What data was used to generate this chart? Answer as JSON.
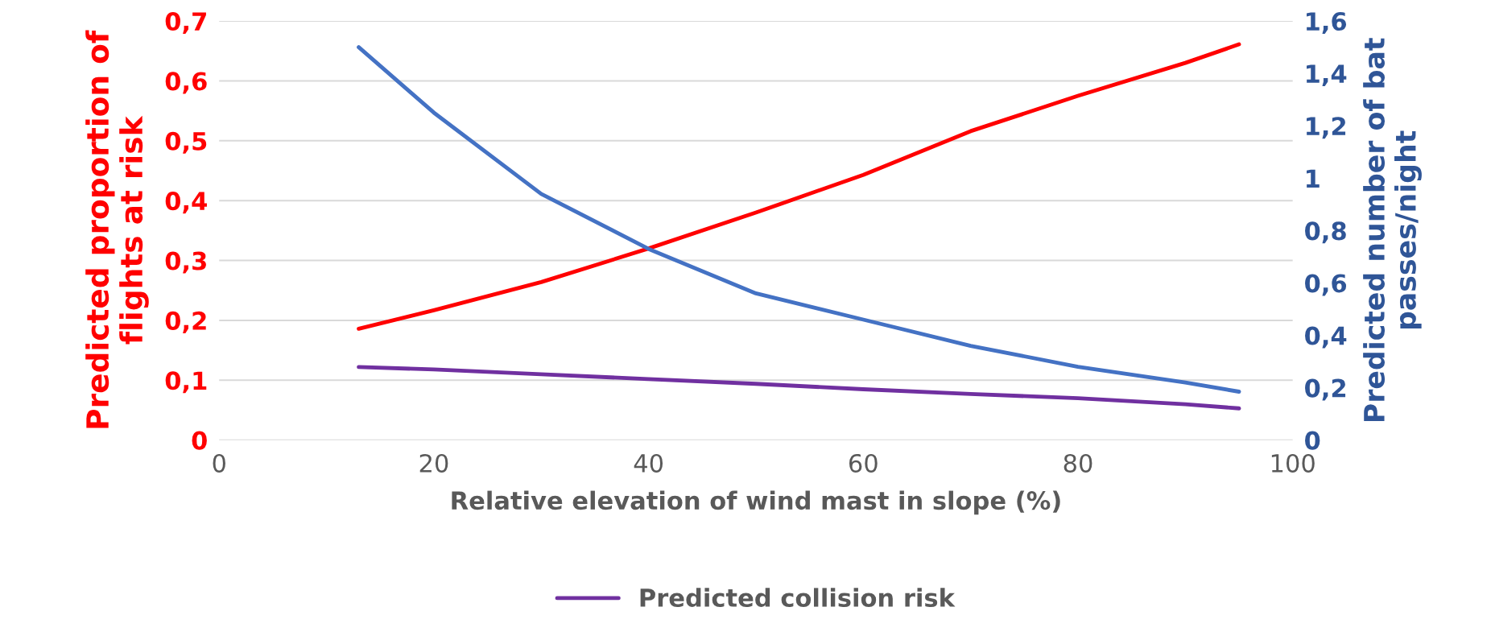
{
  "chart_data": {
    "type": "line",
    "xlabel": "Relative elevation of wind mast in slope (%)",
    "ylabel": "Predicted proportion of flights at risk",
    "y2label": "Predicted number of bat passes/night",
    "x": [
      13,
      20,
      30,
      40,
      50,
      60,
      70,
      80,
      90,
      95
    ],
    "series": [
      {
        "color": "#ff0000",
        "values": [
          0.186,
          0.217,
          0.264,
          0.32,
          0.38,
          0.443,
          0.516,
          0.575,
          0.63,
          0.661
        ]
      },
      {
        "color": "#4472c4",
        "axis": "y2",
        "values": [
          1.5,
          1.25,
          0.94,
          0.73,
          0.56,
          0.46,
          0.36,
          0.28,
          0.22,
          0.185
        ]
      },
      {
        "name": "Predicted collision risk",
        "color": "#7030a0",
        "values": [
          0.122,
          0.118,
          0.11,
          0.102,
          0.094,
          0.085,
          0.077,
          0.07,
          0.06,
          0.053
        ]
      }
    ],
    "xlim": [
      0,
      100
    ],
    "xticks": [
      0,
      20,
      40,
      60,
      80,
      100
    ],
    "ylim": [
      0,
      0.7
    ],
    "yticks": [
      0,
      {
        "value": 0.1,
        "label": "0,1"
      },
      {
        "value": 0.2,
        "label": "0,2"
      },
      {
        "value": 0.3,
        "label": "0,3"
      },
      {
        "value": 0.4,
        "label": "0,4"
      },
      {
        "value": 0.5,
        "label": "0,5"
      },
      {
        "value": 0.6,
        "label": "0,6"
      },
      {
        "value": 0.7,
        "label": "0,7"
      }
    ],
    "y2lim": [
      0,
      1.6
    ],
    "y2ticks": [
      0,
      {
        "value": 0.2,
        "label": "0,2"
      },
      {
        "value": 0.4,
        "label": "0,4"
      },
      {
        "value": 0.6,
        "label": "0,6"
      },
      {
        "value": 0.8,
        "label": "0,8"
      },
      1,
      {
        "value": 1.2,
        "label": "1,2"
      },
      {
        "value": 1.4,
        "label": "1,4"
      },
      {
        "value": 1.6,
        "label": "1,6"
      }
    ],
    "grid": "y",
    "legend": "bottom",
    "marker": "none",
    "line_style": "solid"
  }
}
